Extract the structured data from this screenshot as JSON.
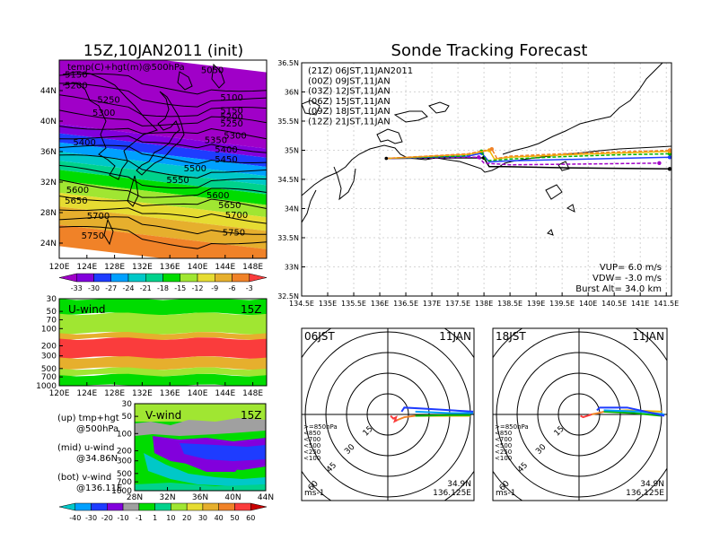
{
  "colors": {
    "shade_scale": [
      "#a000c8",
      "#8200dc",
      "#1e3cff",
      "#00a0ff",
      "#00c8c8",
      "#00d28c",
      "#00dc00",
      "#a0e632",
      "#e6dc32",
      "#e6af2d",
      "#f08228",
      "#fa3c3c"
    ],
    "track_colors": [
      "#000000",
      "#a000c8",
      "#1e3cff",
      "#00b400",
      "#f0b400",
      "#f08228"
    ]
  },
  "chart_data": [
    {
      "type": "heatmap",
      "title": "15Z,10JAN2011 (init)",
      "subtitle": "temp(C)+hgt(m)@500hPa",
      "xticks": [
        "120E",
        "124E",
        "128E",
        "132E",
        "136E",
        "140E",
        "144E",
        "148E"
      ],
      "yticks": [
        "24N",
        "28N",
        "32N",
        "36N",
        "40N",
        "44N"
      ],
      "xlim": [
        120,
        150
      ],
      "ylim": [
        22,
        48
      ],
      "colorbar_labels": [
        "-33",
        "-30",
        "-27",
        "-24",
        "-21",
        "-18",
        "-15",
        "-12",
        "-9",
        "-6",
        "-3"
      ],
      "contour_labels": [
        {
          "label": "5150",
          "x": 120.8,
          "y": 45.7
        },
        {
          "label": "5200",
          "x": 120.8,
          "y": 44.3
        },
        {
          "label": "5050",
          "x": 140.5,
          "y": 46.3
        },
        {
          "label": "5250",
          "x": 125.5,
          "y": 42.4
        },
        {
          "label": "5300",
          "x": 124.8,
          "y": 40.7
        },
        {
          "label": "5100",
          "x": 143.3,
          "y": 42.7
        },
        {
          "label": "5150",
          "x": 143.3,
          "y": 41.0
        },
        {
          "label": "5200",
          "x": 143.3,
          "y": 40.2
        },
        {
          "label": "5250",
          "x": 143.3,
          "y": 39.3
        },
        {
          "label": "5300",
          "x": 143.8,
          "y": 37.7
        },
        {
          "label": "5350",
          "x": 141.0,
          "y": 37.1
        },
        {
          "label": "5400",
          "x": 122.0,
          "y": 36.8
        },
        {
          "label": "5400",
          "x": 142.5,
          "y": 35.9
        },
        {
          "label": "5450",
          "x": 142.5,
          "y": 34.6
        },
        {
          "label": "5500",
          "x": 138.0,
          "y": 33.4
        },
        {
          "label": "5550",
          "x": 135.5,
          "y": 31.9
        },
        {
          "label": "5600",
          "x": 121.0,
          "y": 30.6
        },
        {
          "label": "5650",
          "x": 120.8,
          "y": 29.2
        },
        {
          "label": "5600",
          "x": 141.3,
          "y": 29.9
        },
        {
          "label": "5650",
          "x": 143.0,
          "y": 28.6
        },
        {
          "label": "5700",
          "x": 124.0,
          "y": 27.2
        },
        {
          "label": "5700",
          "x": 144.0,
          "y": 27.3
        },
        {
          "label": "5750",
          "x": 123.2,
          "y": 24.6
        },
        {
          "label": "5750",
          "x": 143.6,
          "y": 25.0
        }
      ]
    },
    {
      "type": "heatmap",
      "title": "U-wind",
      "time": "15Z",
      "xticks": [
        "120E",
        "124E",
        "128E",
        "132E",
        "136E",
        "140E",
        "144E",
        "148E"
      ],
      "yticks": [
        "30",
        "50",
        "70",
        "100",
        "200",
        "300",
        "500",
        "700",
        "1000"
      ],
      "xlim": [
        120,
        150
      ],
      "y_scale": "log-pressure",
      "ylim": [
        1000,
        30
      ],
      "bands": [
        {
          "from": 30,
          "to": 55,
          "level": 6
        },
        {
          "from": 55,
          "to": 120,
          "level": 7
        },
        {
          "from": 120,
          "to": 150,
          "level": 9
        },
        {
          "from": 150,
          "to": 320,
          "level": 11
        },
        {
          "from": 320,
          "to": 500,
          "level": 9
        },
        {
          "from": 500,
          "to": 650,
          "level": 7
        },
        {
          "from": 650,
          "to": 1000,
          "level": 6
        }
      ]
    },
    {
      "type": "heatmap",
      "title": "V-wind",
      "time": "15Z",
      "xticks": [
        "28N",
        "32N",
        "36N",
        "40N",
        "44N"
      ],
      "yticks": [
        "30",
        "50",
        "100",
        "200",
        "300",
        "500",
        "700",
        "1000"
      ],
      "xlim": [
        28,
        44
      ],
      "y_scale": "log-pressure",
      "ylim": [
        1000,
        30
      ],
      "colorbar_labels": [
        "-40",
        "-30",
        "-20",
        "-10",
        "-1",
        "1",
        "10",
        "20",
        "30",
        "40",
        "50",
        "60"
      ]
    },
    {
      "type": "line",
      "title": "Sonde Tracking Forecast",
      "xticks": [
        "134.5E",
        "135E",
        "135.5E",
        "136E",
        "136.5E",
        "137E",
        "137.5E",
        "138E",
        "138.5E",
        "139E",
        "139.5E",
        "140E",
        "140.5E",
        "141E",
        "141.5E"
      ],
      "yticks": [
        "32.5N",
        "33N",
        "33.5N",
        "34N",
        "34.5N",
        "35N",
        "35.5N",
        "36N",
        "36.5N"
      ],
      "xlim": [
        134.5,
        141.6
      ],
      "ylim": [
        32.5,
        36.5
      ],
      "grid": true,
      "legend_position": "top-left",
      "launch": [
        136.125,
        34.86
      ],
      "series": [
        {
          "name": "(21Z)  06JST,11JAN2011",
          "color": "#000000",
          "x": [
            136.125,
            137.6,
            138.0,
            138.1,
            138.4,
            139.5,
            140.5,
            141.6
          ],
          "y": [
            34.86,
            34.87,
            34.87,
            34.72,
            34.72,
            34.7,
            34.69,
            34.68
          ]
        },
        {
          "name": "(00Z)  09JST,11JAN",
          "color": "#a000c8",
          "x": [
            136.125,
            137.7,
            137.9,
            138.0,
            138.5,
            139.5,
            140.5,
            141.4
          ],
          "y": [
            34.86,
            34.88,
            34.88,
            34.78,
            34.75,
            34.76,
            34.77,
            34.78
          ]
        },
        {
          "name": "(03Z)  12JST,11JAN",
          "color": "#1e3cff",
          "x": [
            136.125,
            137.7,
            137.96,
            138.1,
            138.5,
            139.5,
            140.5,
            141.6
          ],
          "y": [
            34.86,
            34.9,
            34.95,
            34.8,
            34.82,
            34.84,
            34.86,
            34.88
          ]
        },
        {
          "name": "(06Z)  15JST,11JAN",
          "color": "#00b400",
          "x": [
            136.125,
            137.6,
            137.95,
            138.05,
            138.5,
            139.5,
            140.5,
            141.6
          ],
          "y": [
            34.86,
            34.9,
            34.98,
            34.82,
            34.85,
            34.89,
            34.92,
            34.94
          ]
        },
        {
          "name": "(09Z)  18JST,11JAN",
          "color": "#f0b400",
          "x": [
            136.125,
            137.7,
            138.1,
            138.2,
            138.5,
            139.5,
            140.5,
            141.6
          ],
          "y": [
            34.86,
            34.93,
            35.0,
            34.85,
            34.88,
            34.92,
            34.95,
            34.98
          ]
        },
        {
          "name": "(12Z)  21JST,11JAN",
          "color": "#f08228",
          "x": [
            136.125,
            137.7,
            138.15,
            138.25,
            138.5,
            139.5,
            140.5,
            141.6
          ],
          "y": [
            34.86,
            34.94,
            35.02,
            34.86,
            34.9,
            34.94,
            34.97,
            35.0
          ]
        }
      ],
      "annotations": [
        "VUP=  6.0  m/s",
        "VDW= -3.0  m/s",
        "Burst Alt=  34.0  km"
      ]
    },
    {
      "type": "line",
      "title": "06JST",
      "date": "11JAN",
      "polar": true,
      "ring_labels": [
        "15",
        "30",
        "45",
        "60"
      ],
      "series": [
        {
          "name": ">=850hPa",
          "color": "#fa3c3c",
          "points": [
            [
              2,
              -1
            ],
            [
              4,
              -3
            ],
            [
              6,
              -2
            ],
            [
              5,
              -5
            ],
            [
              7,
              -4
            ]
          ]
        },
        {
          "name": "<850",
          "color": "#f08228",
          "points": [
            [
              7,
              -4
            ],
            [
              12,
              -2
            ],
            [
              20,
              -1
            ]
          ]
        },
        {
          "name": "<700",
          "color": "#f0b400",
          "points": [
            [
              20,
              -1
            ],
            [
              40,
              -1
            ],
            [
              60,
              -1
            ]
          ]
        },
        {
          "name": "<500",
          "color": "#00b400",
          "points": [
            [
              20,
              -1
            ],
            [
              45,
              -0.5
            ],
            [
              60,
              -0.5
            ]
          ]
        },
        {
          "name": "<250",
          "color": "#00a0ff",
          "points": [
            [
              20,
              2
            ],
            [
              45,
              1
            ],
            [
              62,
              1
            ]
          ]
        },
        {
          "name": "<100",
          "color": "#1e3cff",
          "points": [
            [
              10,
              2
            ],
            [
              12,
              5
            ],
            [
              30,
              4
            ],
            [
              62,
              2
            ]
          ]
        }
      ],
      "unit": "ms-1",
      "position": [
        "34.9N",
        "136.125E"
      ]
    },
    {
      "type": "line",
      "title": "18JST",
      "date": "11JAN",
      "polar": true,
      "ring_labels": [
        "15",
        "30",
        "45",
        "60"
      ],
      "series": [
        {
          "name": ">=850hPa",
          "color": "#fa3c3c",
          "points": [
            [
              1,
              -1
            ],
            [
              3,
              -2
            ],
            [
              6,
              -1
            ],
            [
              9,
              0
            ]
          ]
        },
        {
          "name": "<850",
          "color": "#f08228",
          "points": [
            [
              9,
              0
            ],
            [
              14,
              1
            ],
            [
              18,
              2
            ]
          ]
        },
        {
          "name": "<700",
          "color": "#f0b400",
          "points": [
            [
              18,
              2
            ],
            [
              35,
              3
            ],
            [
              60,
              2
            ]
          ]
        },
        {
          "name": "<500",
          "color": "#00b400",
          "points": [
            [
              18,
              2
            ],
            [
              40,
              1
            ],
            [
              60,
              -1
            ]
          ]
        },
        {
          "name": "<250",
          "color": "#00a0ff",
          "points": [
            [
              18,
              3
            ],
            [
              45,
              2
            ],
            [
              62,
              0
            ]
          ]
        },
        {
          "name": "<100",
          "color": "#1e3cff",
          "points": [
            [
              13,
              3
            ],
            [
              15,
              5
            ],
            [
              35,
              5
            ],
            [
              62,
              -1
            ]
          ]
        }
      ],
      "unit": "ms-1",
      "position": [
        "34.9N",
        "136.125E"
      ]
    }
  ],
  "side_notes": [
    "(up) tmp+hgt",
    "@500hPa",
    "(mid) u-wind",
    "@34.86N",
    "(bot) v-wind",
    "@136.11E"
  ]
}
